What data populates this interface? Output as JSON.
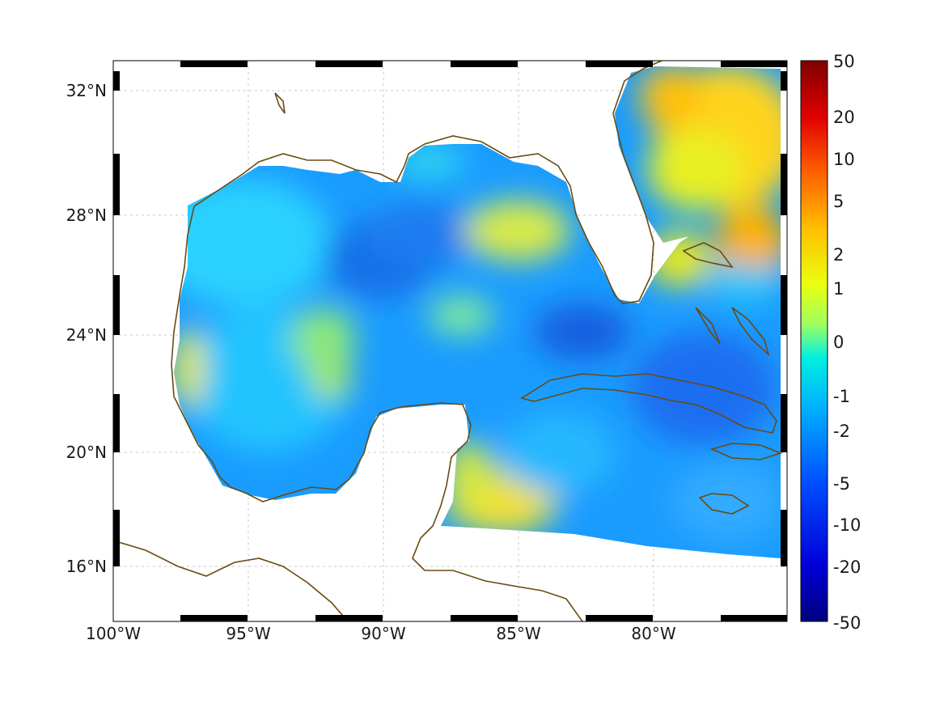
{
  "map": {
    "lon_labels": [
      "100°W",
      "95°W",
      "90°W",
      "85°W",
      "80°W"
    ],
    "lat_labels": [
      "32°N",
      "28°N",
      "24°N",
      "20°N",
      "16°N"
    ],
    "lon_range": [
      -100,
      -75
    ],
    "lat_range": [
      14.2,
      33.0
    ],
    "lon_ticks": [
      -100,
      -95,
      -90,
      -85,
      -80
    ],
    "lat_ticks": [
      32,
      28,
      24,
      20,
      16
    ],
    "gridlines": true,
    "coastline_color": "#6b4a12",
    "frame": "alternating black-white border"
  },
  "colorbar": {
    "position": "right",
    "scale": "symmetric log-like",
    "labels": [
      "50",
      "20",
      "10",
      "5",
      "2",
      "1",
      "0",
      "-1",
      "-2",
      "-5",
      "-10",
      "-20",
      "-50"
    ],
    "colors": [
      "#7f0000",
      "#ff0000",
      "#ff8000",
      "#ffd000",
      "#e8ff00",
      "#a8ff50",
      "#00e8ff",
      "#00a0ff",
      "#0050ff",
      "#0000c0",
      "#00007f"
    ]
  }
}
